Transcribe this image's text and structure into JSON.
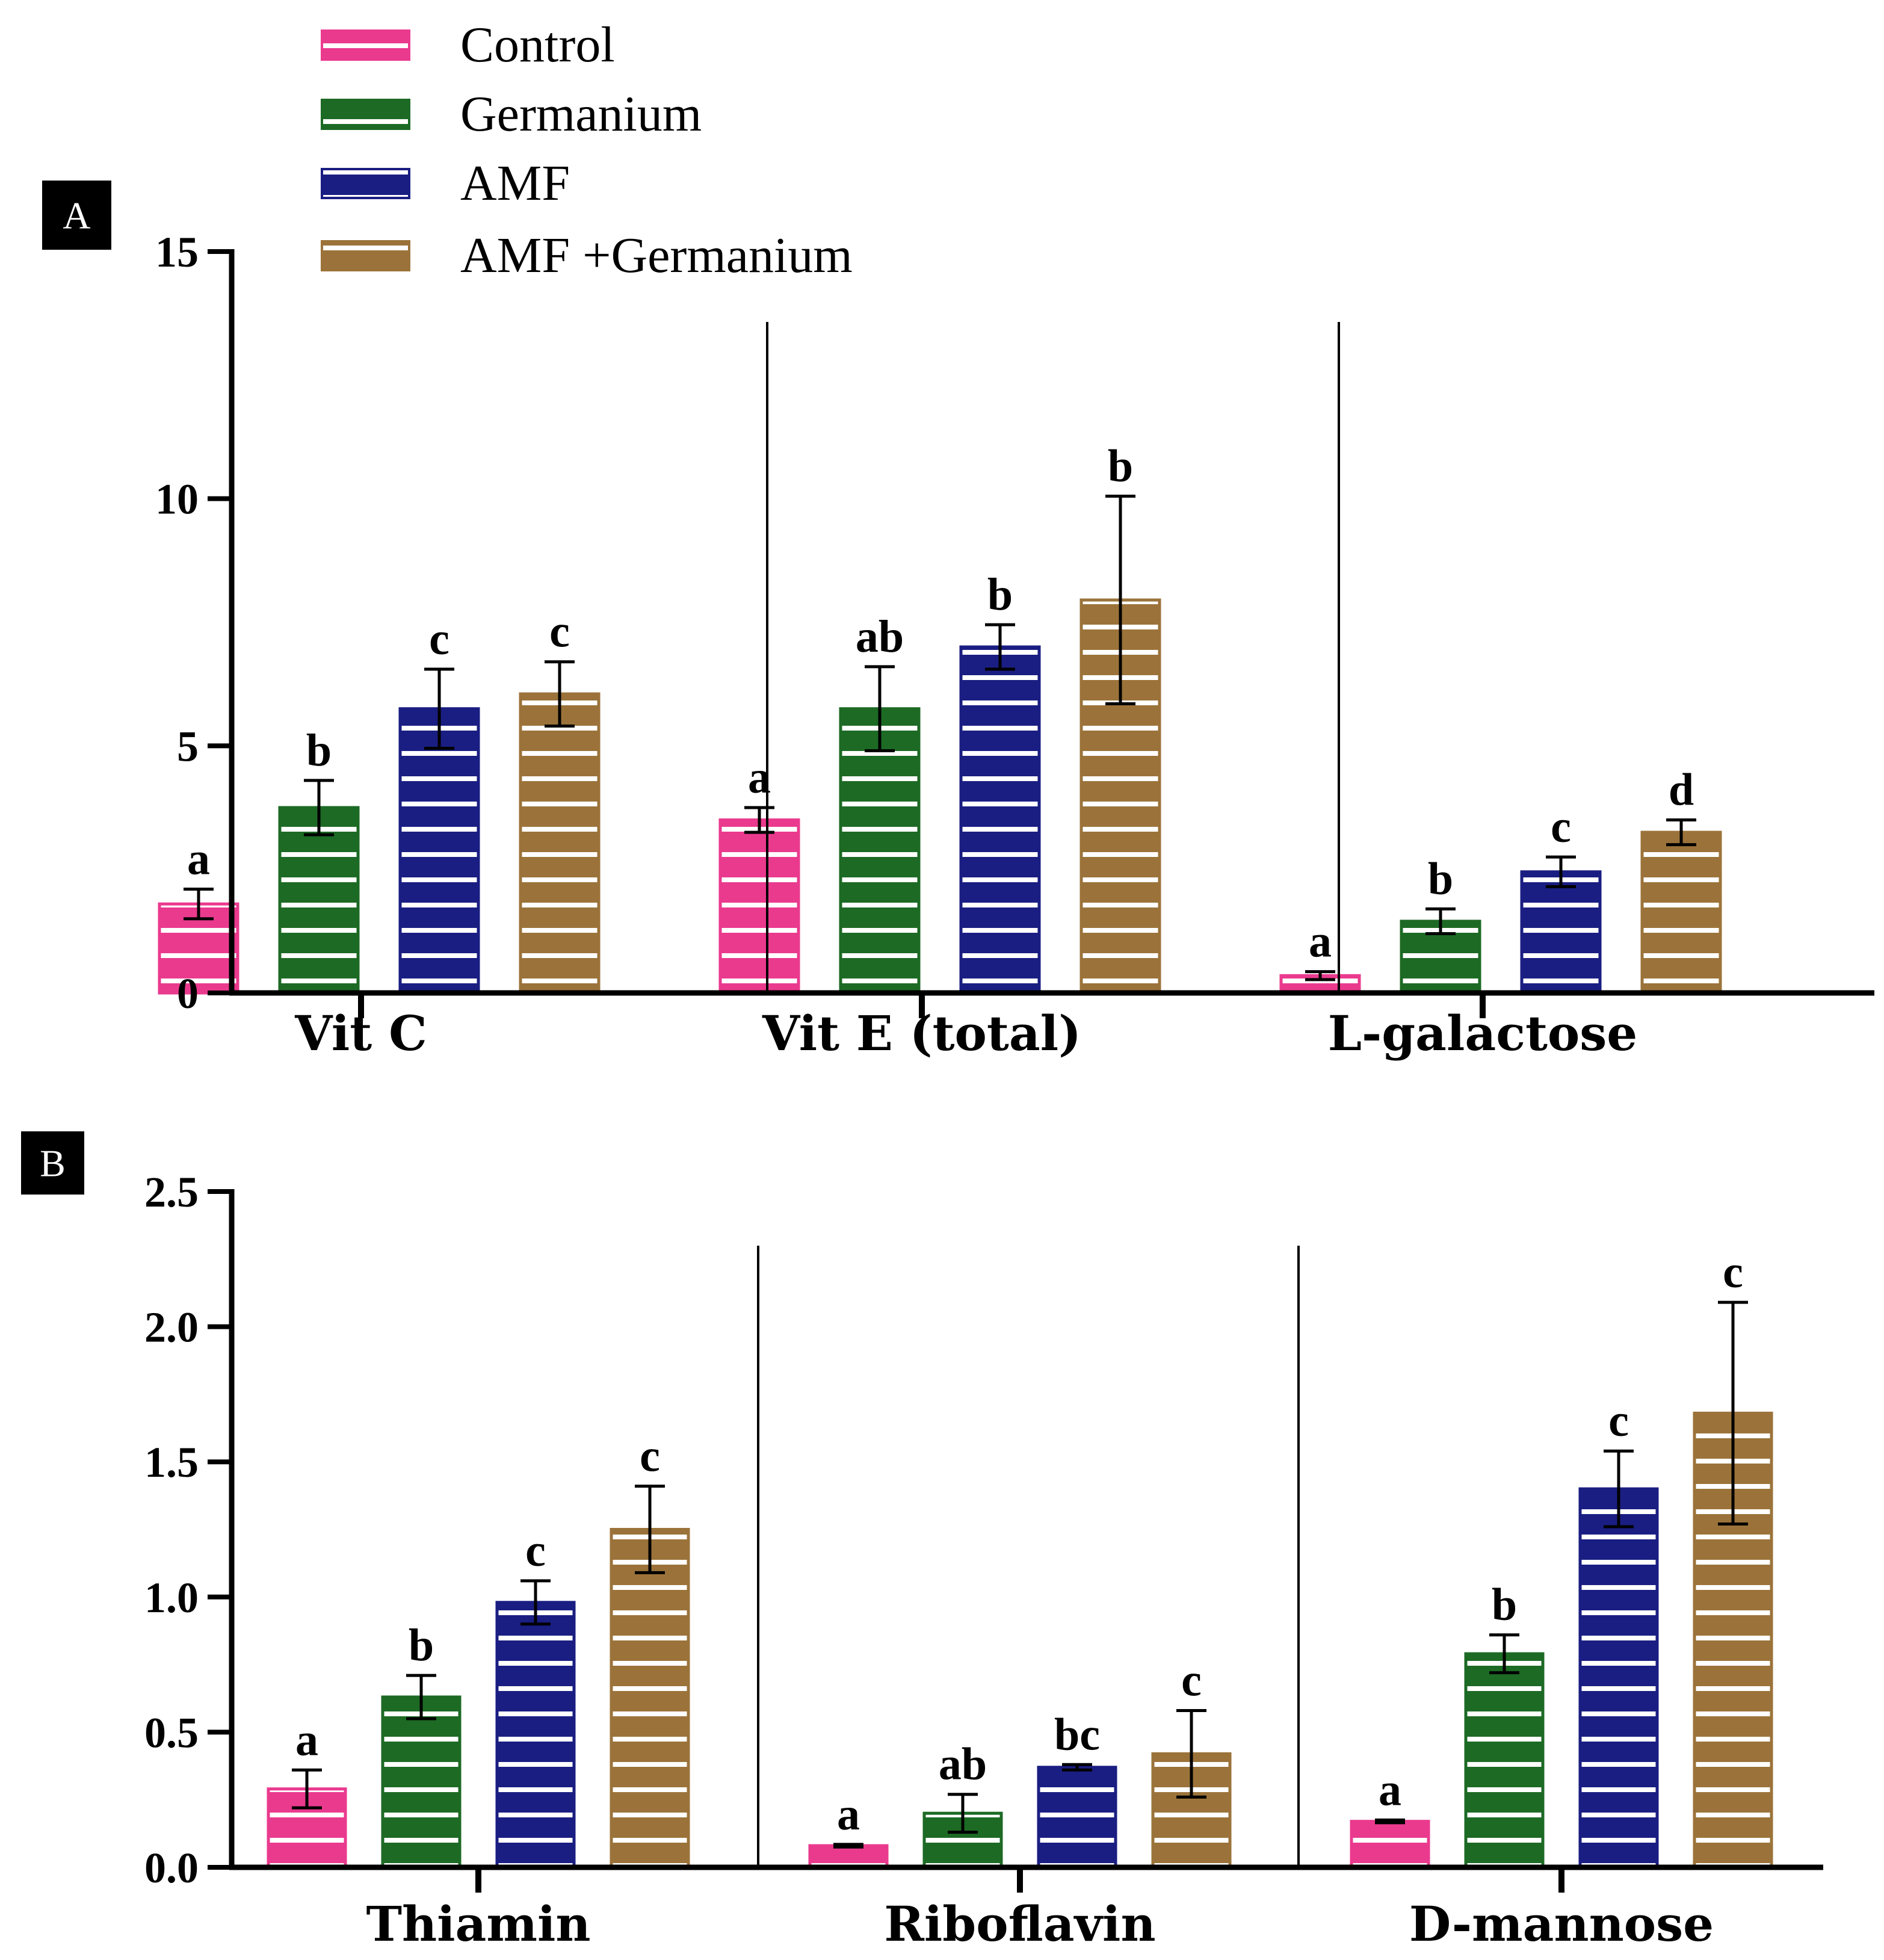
{
  "colors": {
    "Control": "#ea3a8e",
    "Germanium": "#1d6a25",
    "AMF": "#1a1e82",
    "AMF +Germanium": "#9b733a",
    "stripe": "#ffffff"
  },
  "legend": [
    "Control",
    "Germanium",
    "AMF",
    "AMF +Germanium"
  ],
  "chart_data": [
    {
      "type": "bar",
      "panel": "A",
      "categories": [
        "Vit C",
        "Vit E (total)",
        "L-galactose"
      ],
      "ylim": [
        0,
        15
      ],
      "yticks": [
        "0",
        "5",
        "10",
        "15"
      ],
      "series": [
        {
          "name": "Control",
          "values": [
            1.8,
            3.5,
            0.35
          ],
          "errors": [
            0.3,
            0.25,
            0.08
          ],
          "letters": [
            "a",
            "a",
            "a"
          ]
        },
        {
          "name": "Germanium",
          "values": [
            3.75,
            5.75,
            1.45
          ],
          "errors": [
            0.55,
            0.85,
            0.25
          ],
          "letters": [
            "b",
            "ab",
            "b"
          ]
        },
        {
          "name": "AMF",
          "values": [
            5.75,
            7.0,
            2.45
          ],
          "errors": [
            0.8,
            0.45,
            0.3
          ],
          "letters": [
            "c",
            "b",
            "c"
          ]
        },
        {
          "name": "AMF +Germanium",
          "values": [
            6.05,
            7.95,
            3.25
          ],
          "errors": [
            0.65,
            2.1,
            0.25
          ],
          "letters": [
            "c",
            "b",
            "d"
          ]
        }
      ]
    },
    {
      "type": "bar",
      "panel": "B",
      "categories": [
        "Thiamin",
        "Riboflavin",
        "D-mannose"
      ],
      "ylim": [
        0,
        2.5
      ],
      "yticks": [
        "0.0",
        "0.5",
        "1.0",
        "1.5",
        "2.0",
        "2.5"
      ],
      "series": [
        {
          "name": "Control",
          "values": [
            0.29,
            0.08,
            0.17
          ],
          "errors": [
            0.07,
            0.005,
            0.005
          ],
          "letters": [
            "a",
            "a",
            "a"
          ]
        },
        {
          "name": "Germanium",
          "values": [
            0.63,
            0.2,
            0.79
          ],
          "errors": [
            0.08,
            0.07,
            0.07
          ],
          "letters": [
            "b",
            "ab",
            "b"
          ]
        },
        {
          "name": "AMF",
          "values": [
            0.98,
            0.37,
            1.4
          ],
          "errors": [
            0.08,
            0.01,
            0.14
          ],
          "letters": [
            "c",
            "bc",
            "c"
          ]
        },
        {
          "name": "AMF +Germanium",
          "values": [
            1.25,
            0.42,
            1.68
          ],
          "errors": [
            0.16,
            0.16,
            0.41
          ],
          "letters": [
            "c",
            "c",
            "c"
          ]
        }
      ]
    }
  ]
}
